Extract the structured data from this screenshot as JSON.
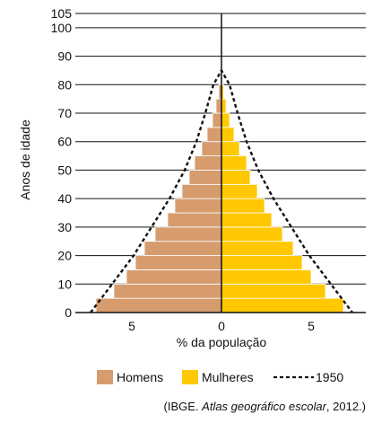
{
  "colors": {
    "men": "#D69C6E",
    "women": "#FFC800",
    "axis": "#111111",
    "grid": "#111111",
    "line1950": "#111111",
    "background": "#ffffff"
  },
  "chart_data": {
    "type": "bar",
    "orientation": "horizontal",
    "title": "",
    "xlabel": "% da população",
    "ylabel": "Anos de idade",
    "xlim": [
      -8,
      8
    ],
    "ylim": [
      0,
      105
    ],
    "grid": true,
    "legend_position": "bottom",
    "y_ticks": [
      0,
      10,
      20,
      30,
      40,
      50,
      60,
      70,
      80,
      90,
      100,
      105
    ],
    "x_ticks": [
      {
        "value": -5,
        "label": "5"
      },
      {
        "value": 0,
        "label": "0"
      },
      {
        "value": 5,
        "label": "5"
      }
    ],
    "age_groups": [
      {
        "from": 0,
        "to": 5
      },
      {
        "from": 5,
        "to": 10
      },
      {
        "from": 10,
        "to": 15
      },
      {
        "from": 15,
        "to": 20
      },
      {
        "from": 20,
        "to": 25
      },
      {
        "from": 25,
        "to": 30
      },
      {
        "from": 30,
        "to": 35
      },
      {
        "from": 35,
        "to": 40
      },
      {
        "from": 40,
        "to": 45
      },
      {
        "from": 45,
        "to": 50
      },
      {
        "from": 50,
        "to": 55
      },
      {
        "from": 55,
        "to": 60
      },
      {
        "from": 60,
        "to": 65
      },
      {
        "from": 65,
        "to": 70
      },
      {
        "from": 70,
        "to": 75
      },
      {
        "from": 75,
        "to": 80
      },
      {
        "from": 80,
        "to": 85
      }
    ],
    "series": [
      {
        "name": "Homens",
        "side": "left",
        "color": "#D69C6E",
        "values": [
          7.0,
          6.0,
          5.3,
          4.8,
          4.3,
          3.7,
          3.0,
          2.6,
          2.2,
          1.8,
          1.5,
          1.1,
          0.8,
          0.5,
          0.3,
          0.15,
          0.05
        ]
      },
      {
        "name": "Mulheres",
        "side": "right",
        "color": "#FFC800",
        "values": [
          6.8,
          5.8,
          5.0,
          4.5,
          4.0,
          3.4,
          2.8,
          2.4,
          2.0,
          1.6,
          1.4,
          1.0,
          0.7,
          0.45,
          0.25,
          0.12,
          0.05
        ]
      }
    ],
    "line_1950": {
      "name": "1950",
      "points": [
        [
          -7.3,
          0
        ],
        [
          -6.1,
          10
        ],
        [
          -4.9,
          20
        ],
        [
          -3.9,
          30
        ],
        [
          -2.9,
          40
        ],
        [
          -2.05,
          50
        ],
        [
          -1.4,
          60
        ],
        [
          -0.9,
          70
        ],
        [
          -0.45,
          80
        ],
        [
          0,
          85
        ],
        [
          0.45,
          80
        ],
        [
          0.9,
          70
        ],
        [
          1.4,
          60
        ],
        [
          2.05,
          50
        ],
        [
          2.9,
          40
        ],
        [
          3.9,
          30
        ],
        [
          4.9,
          20
        ],
        [
          6.1,
          10
        ],
        [
          7.3,
          0
        ]
      ]
    },
    "legend": [
      {
        "label": "Homens",
        "type": "swatch",
        "color": "#D69C6E"
      },
      {
        "label": "Mulheres",
        "type": "swatch",
        "color": "#FFC800"
      },
      {
        "label": "1950",
        "type": "dashed-line",
        "color": "#111111"
      }
    ]
  },
  "source": {
    "text_start": "(IBGE. ",
    "text_italic": "Atlas geográfico escolar",
    "text_end": ", 2012.)"
  }
}
